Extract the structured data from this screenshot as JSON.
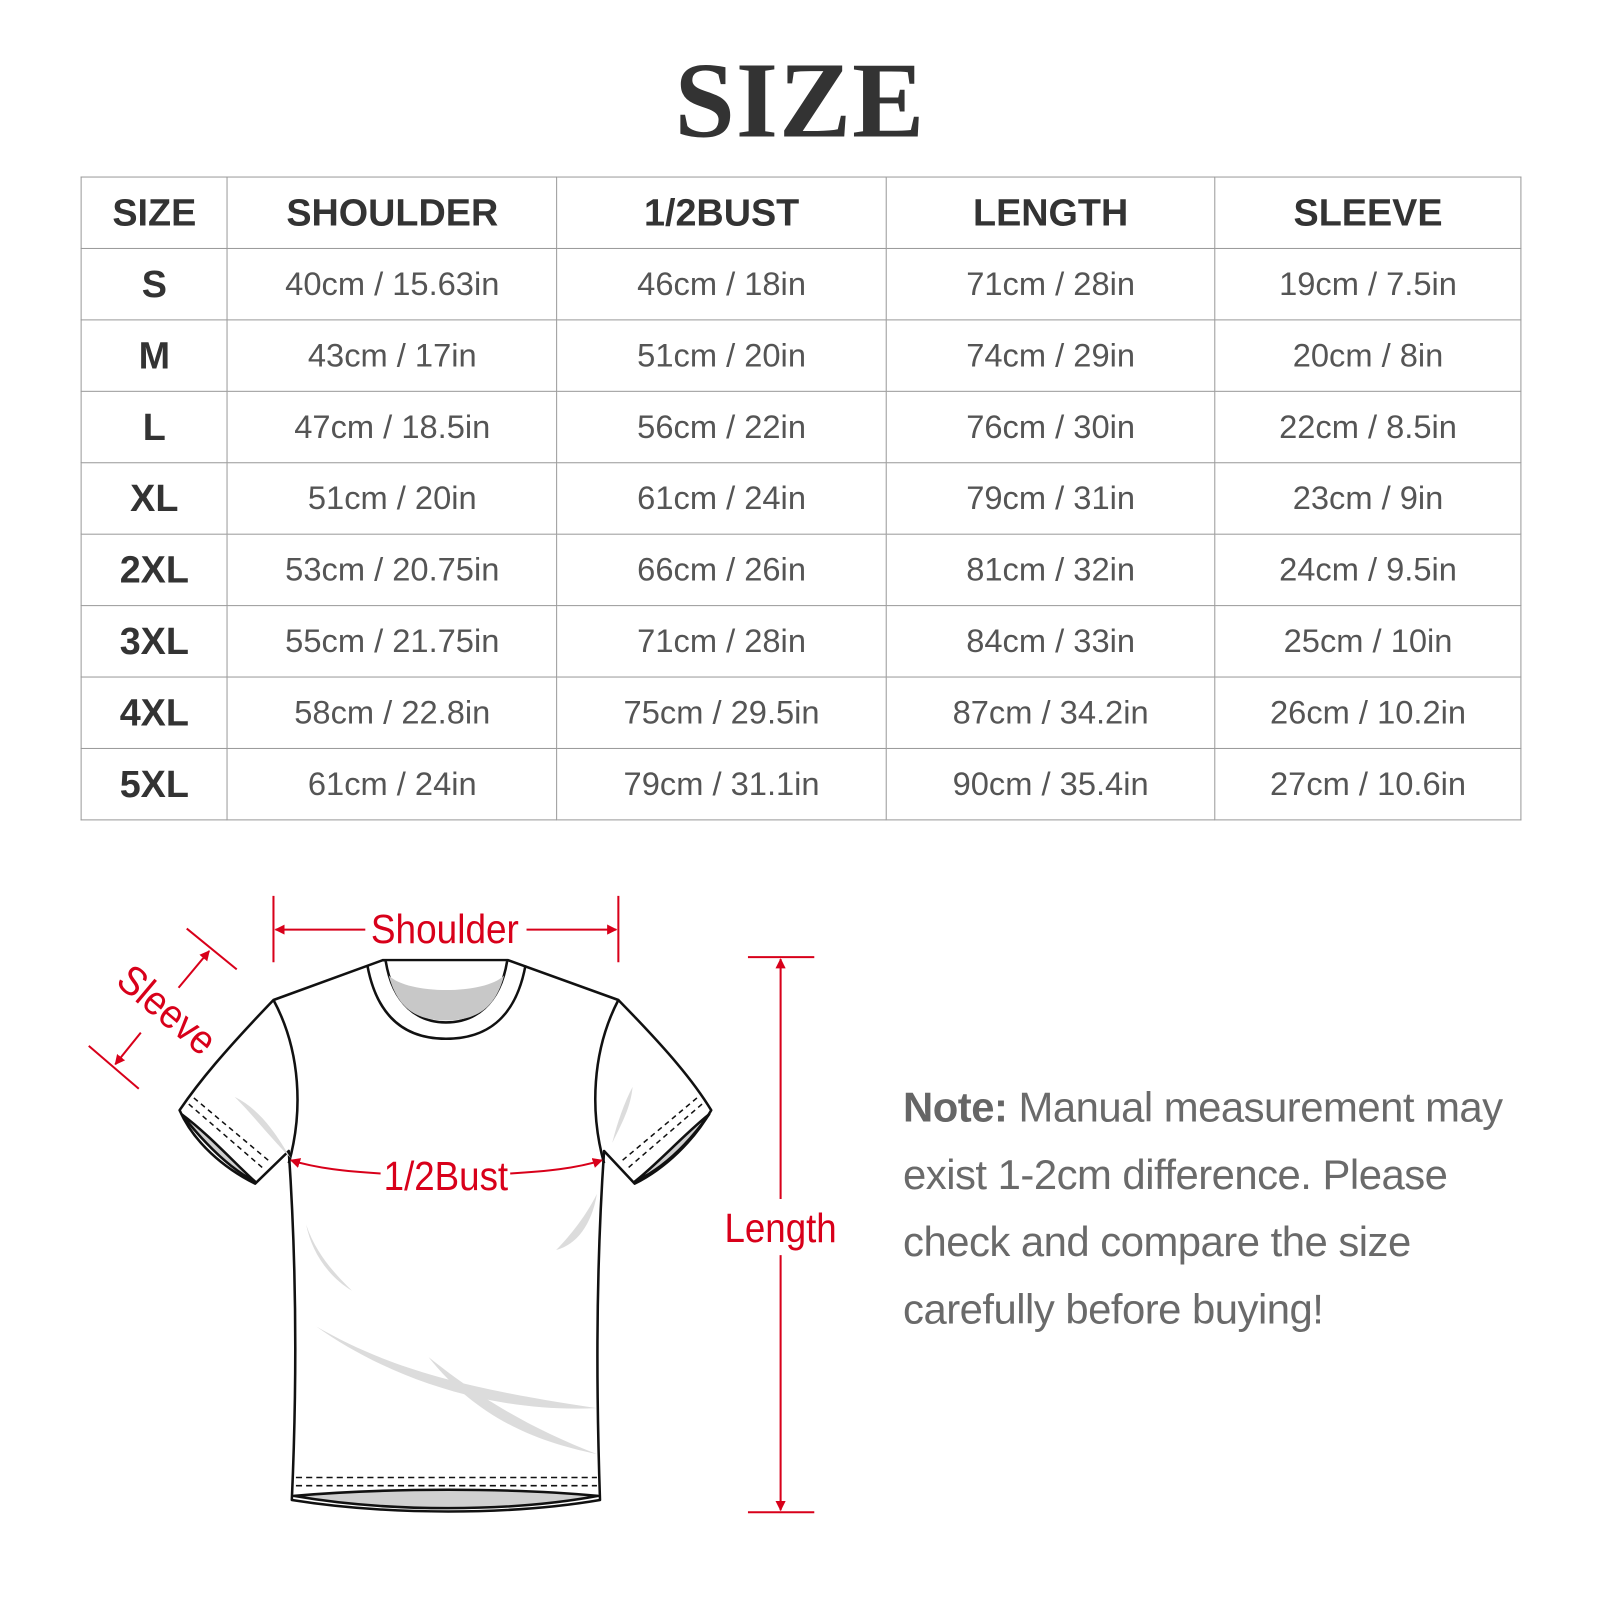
{
  "title": "SIZE",
  "table": {
    "headers": [
      "SIZE",
      "SHOULDER",
      "1/2BUST",
      "LENGTH",
      "SLEEVE"
    ],
    "rows": [
      [
        "S",
        "40cm / 15.63in",
        "46cm / 18in",
        "71cm / 28in",
        "19cm / 7.5in"
      ],
      [
        "M",
        "43cm / 17in",
        "51cm / 20in",
        "74cm / 29in",
        "20cm / 8in"
      ],
      [
        "L",
        "47cm / 18.5in",
        "56cm / 22in",
        "76cm / 30in",
        "22cm / 8.5in"
      ],
      [
        "XL",
        "51cm / 20in",
        "61cm / 24in",
        "79cm / 31in",
        "23cm / 9in"
      ],
      [
        "2XL",
        "53cm / 20.75in",
        "66cm / 26in",
        "81cm / 32in",
        "24cm / 9.5in"
      ],
      [
        "3XL",
        "55cm / 21.75in",
        "71cm / 28in",
        "84cm / 33in",
        "25cm / 10in"
      ],
      [
        "4XL",
        "58cm / 22.8in",
        "75cm / 29.5in",
        "87cm / 34.2in",
        "26cm / 10.2in"
      ],
      [
        "5XL",
        "61cm / 24in",
        "79cm / 31.1in",
        "90cm / 35.4in",
        "27cm / 10.6in"
      ]
    ]
  },
  "diagram": {
    "shoulder": "Shoulder",
    "sleeve": "Sleeve",
    "bust": "1/2Bust",
    "length": "Length",
    "accent_color": "#d8001a"
  },
  "note": {
    "label": "Note:",
    "text": " Manual measurement may exist 1-2cm difference. Please check and compare the size carefully before buying!"
  }
}
